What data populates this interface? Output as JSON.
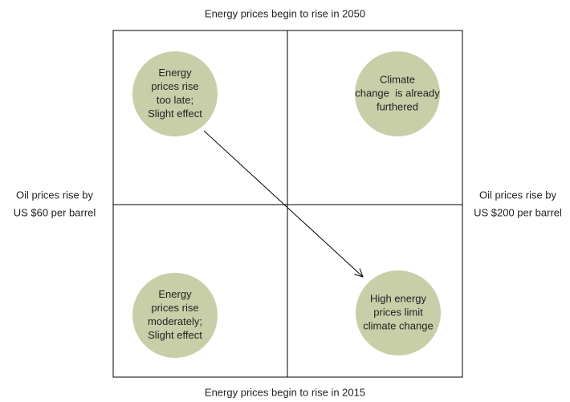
{
  "top_label": "Energy prices begin to rise in 2050",
  "bottom_label": "Energy prices begin to rise in 2015",
  "left_label": [
    "Oil prices rise by",
    "US $60 per barrel"
  ],
  "right_label": [
    "Oil prices rise by",
    "US $200 per barrel"
  ],
  "quadrants": [
    {
      "lines": [
        "Energy",
        "prices rise",
        "too late;",
        "Slight effect"
      ]
    },
    {
      "lines": [
        "Climate",
        "change  is already",
        "furthered"
      ]
    },
    {
      "lines": [
        "Energy",
        "prices rise",
        "moderately;",
        "Slight effect"
      ]
    },
    {
      "lines": [
        "High energy",
        "prices limit",
        "climate change"
      ]
    }
  ]
}
